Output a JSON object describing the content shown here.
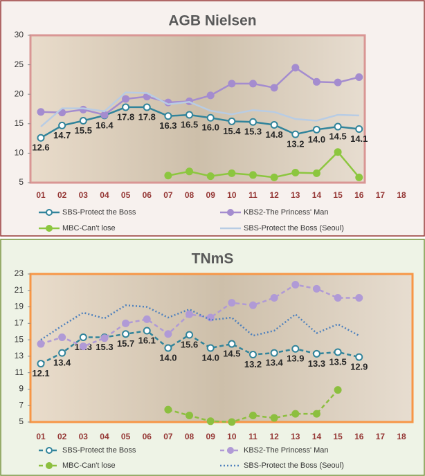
{
  "chart_data": [
    {
      "type": "line",
      "title": "AGB Nielsen",
      "categories": [
        "01",
        "02",
        "03",
        "04",
        "05",
        "06",
        "07",
        "08",
        "09",
        "10",
        "11",
        "12",
        "13",
        "14",
        "15",
        "16",
        "17",
        "18"
      ],
      "ylim": [
        5,
        30
      ],
      "yticks": [
        5,
        10,
        15,
        20,
        25,
        30
      ],
      "legend": "bottom",
      "series": [
        {
          "name": "SBS-Protect the Boss",
          "color": "#31849b",
          "dash": "solid",
          "marker": "open",
          "values": [
            12.6,
            14.7,
            15.5,
            16.4,
            17.8,
            17.8,
            16.3,
            16.5,
            16.0,
            15.4,
            15.3,
            14.8,
            13.2,
            14.0,
            14.5,
            14.1,
            null,
            null
          ],
          "value_labels": [
            "12.6",
            "14.7",
            "15.5",
            "16.4",
            "17.8",
            "17.8",
            "16.3",
            "16.5",
            "16.0",
            "15.4",
            "15.3",
            "14.8",
            "13.2",
            "14.0",
            "14.5",
            "14.1",
            null,
            null
          ]
        },
        {
          "name": "KBS2-The Princess' Man",
          "color": "#a48ccf",
          "dash": "solid",
          "marker": "filled",
          "values": [
            17.0,
            16.9,
            17.4,
            16.5,
            19.2,
            19.6,
            18.6,
            18.8,
            19.8,
            21.8,
            21.8,
            21.1,
            24.5,
            22.1,
            22.0,
            22.9,
            null,
            null
          ]
        },
        {
          "name": "MBC-Can't lose",
          "color": "#8cc63f",
          "dash": "solid",
          "marker": "filled",
          "values": [
            null,
            null,
            null,
            null,
            null,
            null,
            6.2,
            6.9,
            6.1,
            6.6,
            6.3,
            5.9,
            6.7,
            6.6,
            10.2,
            5.9,
            null,
            null
          ]
        },
        {
          "name": "SBS-Protect the Boss (Seoul)",
          "color": "#b8cce4",
          "dash": "solid",
          "marker": "none",
          "values": [
            14.5,
            17.6,
            17.6,
            17.1,
            20.3,
            20.2,
            18.3,
            18.7,
            17.2,
            16.6,
            17.3,
            17.0,
            15.8,
            15.5,
            16.5,
            16.4,
            null,
            null
          ]
        }
      ]
    },
    {
      "type": "line",
      "title": "TNmS",
      "categories": [
        "01",
        "02",
        "03",
        "04",
        "05",
        "06",
        "07",
        "08",
        "09",
        "10",
        "11",
        "12",
        "13",
        "14",
        "15",
        "16",
        "17",
        "18"
      ],
      "ylim": [
        5,
        23
      ],
      "yticks": [
        5,
        7,
        9,
        11,
        13,
        15,
        17,
        19,
        21,
        23
      ],
      "legend": "bottom",
      "series": [
        {
          "name": "SBS-Protect the Boss",
          "color": "#31849b",
          "dash": "dashed",
          "marker": "open",
          "values": [
            12.1,
            13.4,
            15.3,
            15.3,
            15.7,
            16.1,
            14.0,
            15.6,
            14.0,
            14.5,
            13.2,
            13.4,
            13.9,
            13.3,
            13.5,
            12.9,
            null,
            null
          ],
          "value_labels": [
            "12.1",
            "13.4",
            "15.3",
            "15.3",
            "15.7",
            "16.1",
            "14.0",
            "15.6",
            "14.0",
            "14.5",
            "13.2",
            "13.4",
            "13.9",
            "13.3",
            "13.5",
            "12.9",
            null,
            null
          ]
        },
        {
          "name": "KBS2-The Princess' Man",
          "color": "#b09ad6",
          "dash": "dashed",
          "marker": "filled",
          "values": [
            14.5,
            15.3,
            14.2,
            15.2,
            17.0,
            17.5,
            15.7,
            18.1,
            17.7,
            19.5,
            19.2,
            20.1,
            21.7,
            21.2,
            20.1,
            20.1,
            null,
            null
          ]
        },
        {
          "name": "MBC-Can't lose",
          "color": "#8cbf3f",
          "dash": "dashed",
          "marker": "filled",
          "values": [
            null,
            null,
            null,
            null,
            null,
            null,
            6.5,
            5.8,
            5.1,
            5.0,
            5.8,
            5.5,
            6.0,
            6.0,
            8.9,
            null,
            null,
            null
          ]
        },
        {
          "name": "SBS-Protect the Boss (Seoul)",
          "color": "#4f81bd",
          "dash": "dotted",
          "marker": "none",
          "values": [
            15.0,
            16.7,
            18.3,
            17.6,
            19.2,
            19.0,
            17.7,
            18.7,
            17.4,
            17.7,
            15.5,
            16.1,
            18.1,
            15.8,
            16.9,
            15.5,
            null,
            null
          ]
        }
      ]
    }
  ]
}
